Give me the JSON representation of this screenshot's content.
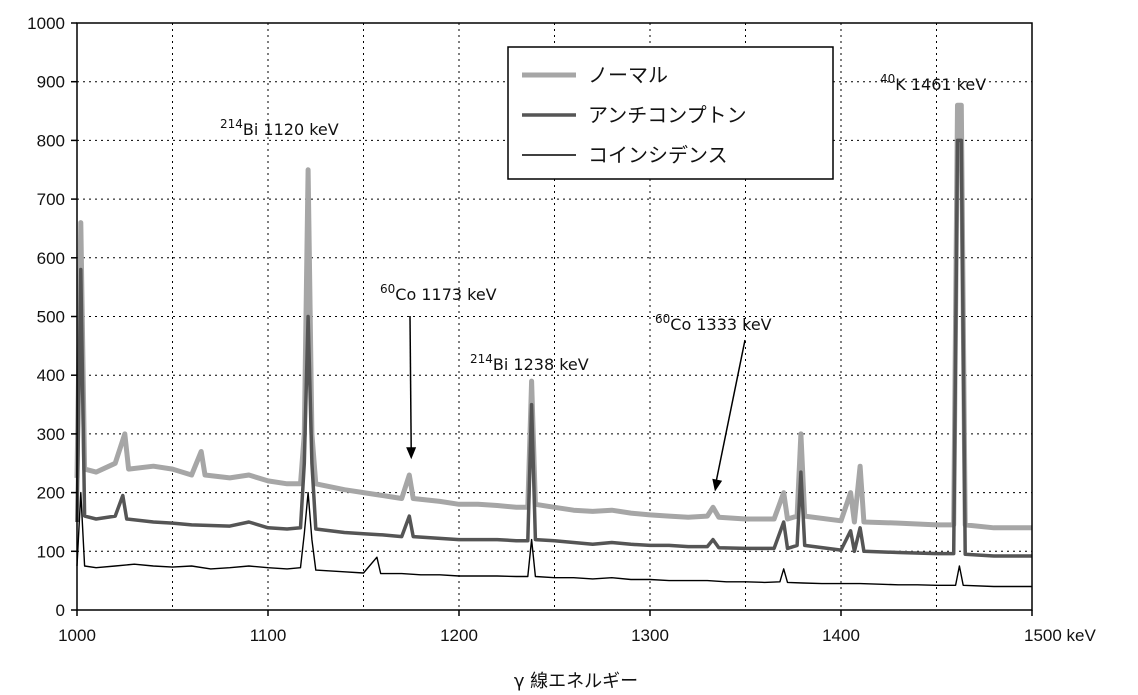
{
  "chart_data": {
    "type": "line",
    "xlabel": "γ 線エネルギー",
    "x_unit": "keV",
    "xlim": [
      1000,
      1500
    ],
    "ylim": [
      0,
      1000
    ],
    "x_ticks": [
      "1000",
      "1100",
      "1200",
      "1300",
      "1400",
      "1500 keV"
    ],
    "y_ticks": [
      "0",
      "100",
      "200",
      "300",
      "400",
      "500",
      "600",
      "700",
      "800",
      "900",
      "1000"
    ],
    "grid": true,
    "legend_position": "top-center",
    "series": [
      {
        "name": "ノーマル",
        "color": "#a6a6a6",
        "points": [
          [
            1000,
            225
          ],
          [
            1002,
            660
          ],
          [
            1004,
            240
          ],
          [
            1010,
            235
          ],
          [
            1020,
            250
          ],
          [
            1025,
            300
          ],
          [
            1027,
            240
          ],
          [
            1040,
            245
          ],
          [
            1050,
            240
          ],
          [
            1060,
            230
          ],
          [
            1065,
            270
          ],
          [
            1067,
            230
          ],
          [
            1080,
            225
          ],
          [
            1090,
            230
          ],
          [
            1100,
            220
          ],
          [
            1110,
            215
          ],
          [
            1117,
            215
          ],
          [
            1119,
            300
          ],
          [
            1121,
            750
          ],
          [
            1123,
            300
          ],
          [
            1125,
            215
          ],
          [
            1140,
            205
          ],
          [
            1150,
            200
          ],
          [
            1160,
            195
          ],
          [
            1170,
            190
          ],
          [
            1174,
            230
          ],
          [
            1176,
            190
          ],
          [
            1190,
            185
          ],
          [
            1200,
            180
          ],
          [
            1210,
            180
          ],
          [
            1220,
            178
          ],
          [
            1230,
            175
          ],
          [
            1236,
            175
          ],
          [
            1238,
            390
          ],
          [
            1240,
            180
          ],
          [
            1250,
            175
          ],
          [
            1260,
            170
          ],
          [
            1270,
            168
          ],
          [
            1280,
            170
          ],
          [
            1290,
            165
          ],
          [
            1300,
            162
          ],
          [
            1310,
            160
          ],
          [
            1320,
            158
          ],
          [
            1330,
            160
          ],
          [
            1333,
            175
          ],
          [
            1336,
            158
          ],
          [
            1350,
            155
          ],
          [
            1365,
            155
          ],
          [
            1370,
            200
          ],
          [
            1372,
            155
          ],
          [
            1377,
            160
          ],
          [
            1379,
            300
          ],
          [
            1381,
            160
          ],
          [
            1400,
            152
          ],
          [
            1405,
            200
          ],
          [
            1407,
            150
          ],
          [
            1410,
            245
          ],
          [
            1412,
            150
          ],
          [
            1430,
            148
          ],
          [
            1450,
            145
          ],
          [
            1459,
            145
          ],
          [
            1461,
            860
          ],
          [
            1463,
            860
          ],
          [
            1465,
            145
          ],
          [
            1480,
            140
          ],
          [
            1500,
            140
          ]
        ]
      },
      {
        "name": "アンチコンプトン",
        "color": "#555555",
        "points": [
          [
            1000,
            150
          ],
          [
            1002,
            580
          ],
          [
            1004,
            160
          ],
          [
            1010,
            155
          ],
          [
            1020,
            160
          ],
          [
            1024,
            195
          ],
          [
            1026,
            155
          ],
          [
            1040,
            150
          ],
          [
            1050,
            148
          ],
          [
            1060,
            145
          ],
          [
            1080,
            143
          ],
          [
            1090,
            150
          ],
          [
            1100,
            140
          ],
          [
            1110,
            138
          ],
          [
            1117,
            140
          ],
          [
            1119,
            250
          ],
          [
            1121,
            500
          ],
          [
            1123,
            250
          ],
          [
            1125,
            138
          ],
          [
            1140,
            132
          ],
          [
            1150,
            130
          ],
          [
            1160,
            128
          ],
          [
            1170,
            125
          ],
          [
            1174,
            160
          ],
          [
            1176,
            125
          ],
          [
            1190,
            122
          ],
          [
            1200,
            120
          ],
          [
            1210,
            120
          ],
          [
            1220,
            120
          ],
          [
            1230,
            118
          ],
          [
            1236,
            118
          ],
          [
            1238,
            350
          ],
          [
            1240,
            120
          ],
          [
            1250,
            118
          ],
          [
            1260,
            115
          ],
          [
            1270,
            112
          ],
          [
            1280,
            115
          ],
          [
            1290,
            112
          ],
          [
            1300,
            110
          ],
          [
            1310,
            110
          ],
          [
            1320,
            108
          ],
          [
            1330,
            108
          ],
          [
            1333,
            120
          ],
          [
            1336,
            106
          ],
          [
            1350,
            105
          ],
          [
            1365,
            105
          ],
          [
            1370,
            150
          ],
          [
            1372,
            105
          ],
          [
            1377,
            110
          ],
          [
            1379,
            235
          ],
          [
            1381,
            110
          ],
          [
            1400,
            102
          ],
          [
            1405,
            135
          ],
          [
            1407,
            100
          ],
          [
            1410,
            140
          ],
          [
            1412,
            100
          ],
          [
            1430,
            98
          ],
          [
            1450,
            96
          ],
          [
            1459,
            96
          ],
          [
            1461,
            800
          ],
          [
            1463,
            800
          ],
          [
            1465,
            95
          ],
          [
            1480,
            92
          ],
          [
            1500,
            92
          ]
        ]
      },
      {
        "name": "コインシデンス",
        "color": "#000000",
        "points": [
          [
            1000,
            75
          ],
          [
            1002,
            200
          ],
          [
            1004,
            75
          ],
          [
            1010,
            72
          ],
          [
            1020,
            75
          ],
          [
            1030,
            78
          ],
          [
            1040,
            75
          ],
          [
            1050,
            73
          ],
          [
            1060,
            75
          ],
          [
            1070,
            70
          ],
          [
            1080,
            72
          ],
          [
            1090,
            75
          ],
          [
            1100,
            72
          ],
          [
            1110,
            70
          ],
          [
            1117,
            72
          ],
          [
            1119,
            130
          ],
          [
            1121,
            200
          ],
          [
            1123,
            120
          ],
          [
            1125,
            68
          ],
          [
            1140,
            65
          ],
          [
            1150,
            63
          ],
          [
            1157,
            90
          ],
          [
            1159,
            62
          ],
          [
            1170,
            62
          ],
          [
            1180,
            60
          ],
          [
            1190,
            60
          ],
          [
            1200,
            58
          ],
          [
            1210,
            58
          ],
          [
            1220,
            58
          ],
          [
            1230,
            57
          ],
          [
            1236,
            57
          ],
          [
            1238,
            120
          ],
          [
            1240,
            57
          ],
          [
            1250,
            55
          ],
          [
            1260,
            55
          ],
          [
            1270,
            53
          ],
          [
            1280,
            55
          ],
          [
            1290,
            52
          ],
          [
            1300,
            52
          ],
          [
            1310,
            50
          ],
          [
            1320,
            50
          ],
          [
            1330,
            50
          ],
          [
            1340,
            48
          ],
          [
            1350,
            48
          ],
          [
            1360,
            47
          ],
          [
            1368,
            48
          ],
          [
            1370,
            70
          ],
          [
            1372,
            47
          ],
          [
            1380,
            46
          ],
          [
            1390,
            45
          ],
          [
            1400,
            45
          ],
          [
            1410,
            45
          ],
          [
            1420,
            44
          ],
          [
            1430,
            43
          ],
          [
            1440,
            43
          ],
          [
            1450,
            42
          ],
          [
            1460,
            42
          ],
          [
            1462,
            75
          ],
          [
            1464,
            42
          ],
          [
            1480,
            40
          ],
          [
            1500,
            40
          ]
        ]
      }
    ],
    "annotations": [
      {
        "sup": "214",
        "text": "Bi 1120 keV",
        "peak": [
          1121,
          750
        ],
        "arrow": false
      },
      {
        "sup": "60",
        "text": "Co 1173 keV",
        "peak": [
          1175,
          250
        ],
        "arrow": true
      },
      {
        "sup": "214",
        "text": "Bi 1238 keV",
        "peak": [
          1238,
          390
        ],
        "arrow": false
      },
      {
        "sup": "60",
        "text": "Co 1333 keV",
        "peak": [
          1334,
          195
        ],
        "arrow": true
      },
      {
        "sup": "40",
        "text": "K 1461 keV",
        "peak": [
          1462,
          860
        ],
        "arrow": false
      }
    ]
  }
}
